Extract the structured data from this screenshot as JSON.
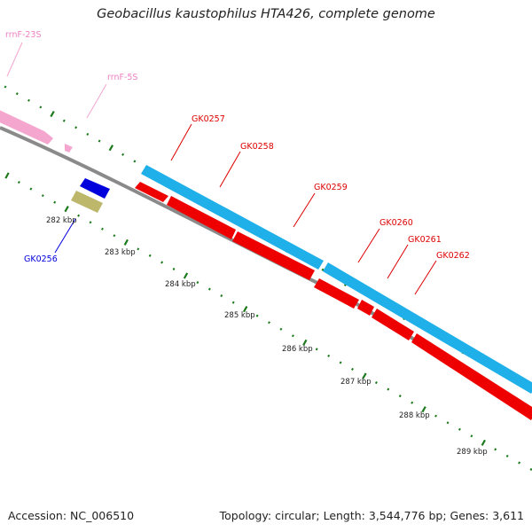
{
  "title": "Geobacillus kaustophilus HTA426, complete genome",
  "footer": {
    "accession": "Accession: NC_006510",
    "summary": "Topology: circular; Length: 3,544,776 bp; Genes: 3,611"
  },
  "colors": {
    "backbone": "#8a8a8a",
    "tick": "#1d7a1d",
    "rrna": "#f4a6cf",
    "rrna_label": "#ee82c2",
    "cds_blue": "#1fb0ea",
    "cds_red": "#ee0000",
    "gene_label_red": "#dd0000",
    "gene_blue": "#0000dd",
    "gene_khaki": "#bdb76b"
  },
  "ticks": {
    "unit": "kbp",
    "labels": [
      "282 kbp",
      "283 kbp",
      "284 kbp",
      "285 kbp",
      "286 kbp",
      "287 kbp",
      "288 kbp",
      "289 kbp"
    ]
  },
  "features": {
    "rrna": [
      "rrnF-23S",
      "rrnF-5S"
    ],
    "genes_red": [
      "GK0257",
      "GK0258",
      "GK0259",
      "GK0260",
      "GK0261",
      "GK0262"
    ],
    "genes_blue": [
      "GK0256"
    ]
  }
}
